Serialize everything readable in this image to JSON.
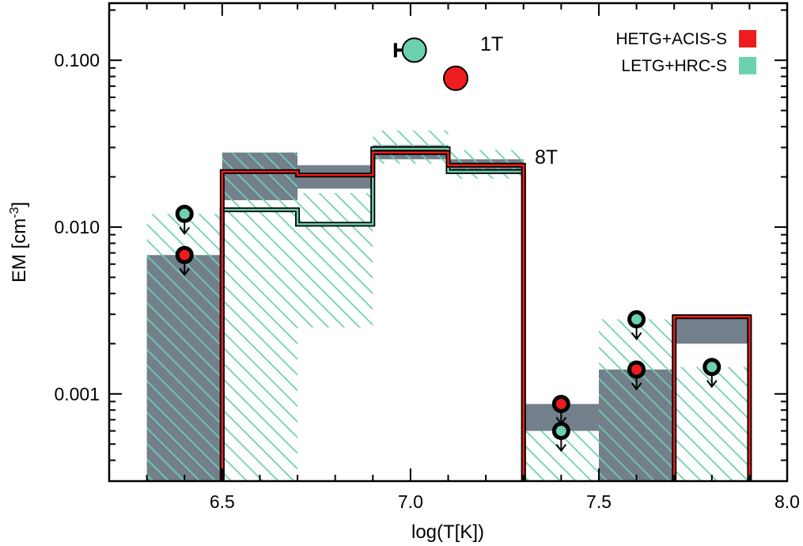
{
  "chart_data": {
    "type": "step",
    "xlabel": "log(T[K])",
    "ylabel_main": "EM [cm",
    "ylabel_sup": "-3",
    "ylabel_close": "]",
    "xlim": [
      6.2,
      8.0
    ],
    "ylim": [
      0.0003,
      0.22
    ],
    "yscale": "log",
    "xticks": [
      6.5,
      7.0,
      7.5,
      8.0
    ],
    "xtick_labels": [
      "6.5",
      "7.0",
      "7.5",
      "8.0"
    ],
    "yticks": [
      0.001,
      0.01,
      0.1
    ],
    "ytick_labels": [
      "0.001",
      "0.010",
      "0.100"
    ],
    "colors": {
      "hetg": "#ee1c1c",
      "letg": "#6cd1ad",
      "band": "#737f8b",
      "axis": "#000000"
    },
    "legend": [
      {
        "label": "HETG+ACIS-S",
        "color": "#ee1c1c"
      },
      {
        "label": "LETG+HRC-S",
        "color": "#6cd1ad"
      }
    ],
    "annotations": {
      "one_t": "1T",
      "eight_t": "8T"
    },
    "bins_edges": [
      6.3,
      6.5,
      6.7,
      6.9,
      7.1,
      7.3,
      7.5,
      7.7,
      7.9
    ],
    "hetg_band": [
      {
        "x0": 6.3,
        "x1": 6.5,
        "lo": 0.0003,
        "hi": 0.0068
      },
      {
        "x0": 6.5,
        "x1": 6.7,
        "lo": 0.0145,
        "hi": 0.028
      },
      {
        "x0": 6.7,
        "x1": 6.9,
        "lo": 0.017,
        "hi": 0.0235
      },
      {
        "x0": 6.9,
        "x1": 7.1,
        "lo": 0.0255,
        "hi": 0.031
      },
      {
        "x0": 7.1,
        "x1": 7.3,
        "lo": 0.021,
        "hi": 0.0255
      },
      {
        "x0": 7.3,
        "x1": 7.5,
        "lo": 0.0006,
        "hi": 0.00087
      },
      {
        "x0": 7.5,
        "x1": 7.7,
        "lo": 0.0003,
        "hi": 0.0014
      },
      {
        "x0": 7.7,
        "x1": 7.9,
        "lo": 0.002,
        "hi": 0.003
      }
    ],
    "letg_band": [
      {
        "x0": 6.3,
        "x1": 6.5,
        "lo": 0.0003,
        "hi": 0.012
      },
      {
        "x0": 6.5,
        "x1": 6.7,
        "lo": 0.0003,
        "hi": 0.028
      },
      {
        "x0": 6.7,
        "x1": 6.9,
        "lo": 0.0025,
        "hi": 0.016
      },
      {
        "x0": 6.9,
        "x1": 7.1,
        "lo": 0.024,
        "hi": 0.038
      },
      {
        "x0": 7.1,
        "x1": 7.3,
        "lo": 0.0195,
        "hi": 0.029
      },
      {
        "x0": 7.3,
        "x1": 7.5,
        "lo": 0.0003,
        "hi": 0.0006
      },
      {
        "x0": 7.5,
        "x1": 7.7,
        "lo": 0.0003,
        "hi": 0.0028
      },
      {
        "x0": 7.7,
        "x1": 7.9,
        "lo": 0.0003,
        "hi": 0.00145
      }
    ],
    "hetg_step": [
      {
        "x0": 6.5,
        "x1": 6.7,
        "y": 0.0215
      },
      {
        "x0": 6.7,
        "x1": 6.9,
        "y": 0.0205
      },
      {
        "x0": 6.9,
        "x1": 7.1,
        "y": 0.028
      },
      {
        "x0": 7.1,
        "x1": 7.3,
        "y": 0.0235
      },
      {
        "x0": 7.7,
        "x1": 7.9,
        "y": 0.0029
      }
    ],
    "letg_step": [
      {
        "x0": 6.5,
        "x1": 6.7,
        "y": 0.0127
      },
      {
        "x0": 6.7,
        "x1": 6.9,
        "y": 0.0104
      },
      {
        "x0": 6.9,
        "x1": 7.1,
        "y": 0.0295
      },
      {
        "x0": 7.1,
        "x1": 7.3,
        "y": 0.0215
      }
    ],
    "upper_limits": [
      {
        "x": 6.4,
        "y": 0.012,
        "instrument": "letg"
      },
      {
        "x": 6.4,
        "y": 0.0068,
        "instrument": "hetg"
      },
      {
        "x": 7.4,
        "y": 0.00087,
        "instrument": "hetg"
      },
      {
        "x": 7.4,
        "y": 0.0006,
        "instrument": "letg"
      },
      {
        "x": 7.6,
        "y": 0.0028,
        "instrument": "letg"
      },
      {
        "x": 7.6,
        "y": 0.0014,
        "instrument": "hetg"
      },
      {
        "x": 7.8,
        "y": 0.00145,
        "instrument": "letg"
      }
    ],
    "one_t_points": [
      {
        "instrument": "letg",
        "x": 7.01,
        "y": 0.115,
        "xerr_lo": 6.96
      },
      {
        "instrument": "hetg",
        "x": 7.12,
        "y": 0.078
      }
    ]
  }
}
